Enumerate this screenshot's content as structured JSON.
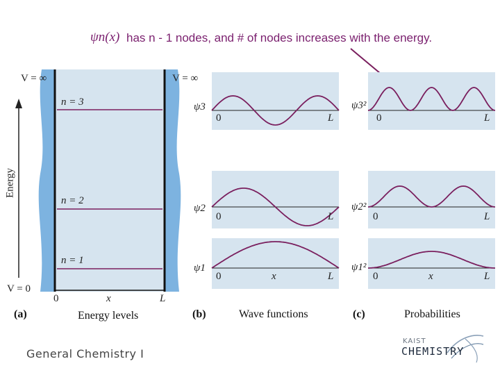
{
  "heading": {
    "psi_notation": "ψn(x)",
    "text": "has n - 1 nodes, and # of nodes increases with the energy."
  },
  "panel_a": {
    "v_inf_left": "V = ∞",
    "v_inf_right": "V = ∞",
    "v_zero": "V = 0",
    "energy_axis": "Energy",
    "levels": [
      "n = 3",
      "n = 2",
      "n = 1"
    ],
    "axis_ticks": [
      "0",
      "x",
      "L"
    ],
    "caption_letter": "(a)",
    "caption": "Energy levels"
  },
  "panel_b": {
    "labels": [
      "ψ3",
      "ψ2",
      "ψ1"
    ],
    "axis_ticks": [
      "0",
      "x",
      "L"
    ],
    "caption_letter": "(b)",
    "caption": "Wave functions"
  },
  "panel_c": {
    "labels": [
      "ψ3²",
      "ψ2²",
      "ψ1²"
    ],
    "axis_ticks": [
      "0",
      "x",
      "L"
    ],
    "caption_letter": "(c)",
    "caption": "Probabilities"
  },
  "footer": {
    "course": "General Chemistry I"
  },
  "logo": {
    "small": "KAIST",
    "big": "CHEMISTRY"
  },
  "colors": {
    "curve": "#7a1f5e",
    "panel_bg": "#d6e4ef",
    "wall": "#7db3e0",
    "heading": "#7a1f6e"
  }
}
